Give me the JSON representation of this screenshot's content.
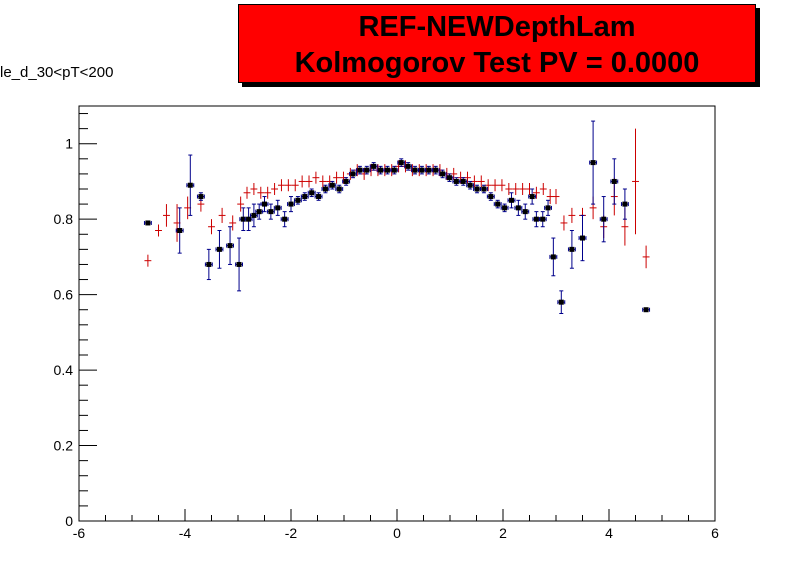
{
  "title": {
    "line1": "REF-NEWDepthLam",
    "line2": "Kolmogorov Test PV = 0.0000"
  },
  "side_label": "le_d_30<pT<200",
  "colors": {
    "title_bg": "#ff0000",
    "ref": "#cc0000",
    "new_marker": "#000000",
    "new_err": "#00008b"
  },
  "chart_data": {
    "type": "scatter",
    "title": "REF-NEWDepthLam",
    "xlim": [
      -6,
      6
    ],
    "ylim": [
      0,
      1.1
    ],
    "xticks": [
      "-6",
      "-4",
      "-2",
      "0",
      "2",
      "4",
      "6"
    ],
    "yticks": [
      "0",
      "0.2",
      "0.4",
      "0.6",
      "0.8",
      "1"
    ],
    "xtick_values": [
      -6,
      -4,
      -2,
      0,
      2,
      4,
      6
    ],
    "ytick_values": [
      0,
      0.2,
      0.4,
      0.6,
      0.8,
      1.0
    ],
    "bin_half_width": 0.065,
    "series": [
      {
        "style": "cross-red",
        "points": [
          [
            -4.7,
            0.69,
            0.0
          ],
          [
            -4.5,
            0.77,
            0.01
          ],
          [
            -4.35,
            0.81,
            0.03
          ],
          [
            -4.15,
            0.79,
            0.05
          ],
          [
            -3.95,
            0.83,
            0.03
          ],
          [
            -3.7,
            0.84,
            0.02
          ],
          [
            -3.5,
            0.78,
            0.02
          ],
          [
            -3.3,
            0.81,
            0.02
          ],
          [
            -3.1,
            0.79,
            0.02
          ],
          [
            -2.95,
            0.84,
            0.02
          ],
          [
            -2.83,
            0.87,
            0.01
          ],
          [
            -2.7,
            0.88,
            0.01
          ],
          [
            -2.57,
            0.87,
            0.01
          ],
          [
            -2.44,
            0.87,
            0.01
          ],
          [
            -2.31,
            0.88,
            0.01
          ],
          [
            -2.18,
            0.89,
            0.01
          ],
          [
            -2.05,
            0.89,
            0.01
          ],
          [
            -1.92,
            0.89,
            0.01
          ],
          [
            -1.79,
            0.9,
            0.01
          ],
          [
            -1.66,
            0.9,
            0.01
          ],
          [
            -1.53,
            0.91,
            0.01
          ],
          [
            -1.4,
            0.9,
            0.01
          ],
          [
            -1.27,
            0.9,
            0.01
          ],
          [
            -1.14,
            0.91,
            0.01
          ],
          [
            -1.01,
            0.91,
            0.01
          ],
          [
            -0.88,
            0.92,
            0.01
          ],
          [
            -0.75,
            0.93,
            0.01
          ],
          [
            -0.62,
            0.92,
            0.01
          ],
          [
            -0.49,
            0.93,
            0.01
          ],
          [
            -0.36,
            0.93,
            0.01
          ],
          [
            -0.23,
            0.93,
            0.01
          ],
          [
            -0.1,
            0.93,
            0.01
          ],
          [
            0.03,
            0.94,
            0.01
          ],
          [
            0.16,
            0.94,
            0.01
          ],
          [
            0.29,
            0.93,
            0.01
          ],
          [
            0.42,
            0.93,
            0.01
          ],
          [
            0.55,
            0.93,
            0.01
          ],
          [
            0.68,
            0.93,
            0.01
          ],
          [
            0.81,
            0.93,
            0.01
          ],
          [
            0.94,
            0.92,
            0.01
          ],
          [
            1.07,
            0.92,
            0.01
          ],
          [
            1.2,
            0.91,
            0.01
          ],
          [
            1.33,
            0.91,
            0.01
          ],
          [
            1.46,
            0.9,
            0.01
          ],
          [
            1.59,
            0.9,
            0.01
          ],
          [
            1.72,
            0.89,
            0.01
          ],
          [
            1.85,
            0.89,
            0.01
          ],
          [
            1.98,
            0.89,
            0.01
          ],
          [
            2.11,
            0.88,
            0.01
          ],
          [
            2.24,
            0.88,
            0.01
          ],
          [
            2.37,
            0.88,
            0.01
          ],
          [
            2.5,
            0.88,
            0.01
          ],
          [
            2.63,
            0.87,
            0.01
          ],
          [
            2.76,
            0.88,
            0.01
          ],
          [
            2.89,
            0.86,
            0.02
          ],
          [
            3.0,
            0.86,
            0.02
          ],
          [
            3.15,
            0.79,
            0.02
          ],
          [
            3.3,
            0.81,
            0.02
          ],
          [
            3.5,
            0.81,
            0.02
          ],
          [
            3.7,
            0.83,
            0.03
          ],
          [
            3.9,
            0.78,
            0.03
          ],
          [
            4.1,
            0.86,
            0.05
          ],
          [
            4.3,
            0.78,
            0.05
          ],
          [
            4.5,
            0.9,
            0.14
          ],
          [
            4.7,
            0.7,
            0.03
          ]
        ]
      },
      {
        "style": "square-black",
        "points": [
          [
            -4.7,
            0.79,
            0.0
          ],
          [
            -4.1,
            0.77,
            0.06
          ],
          [
            -3.9,
            0.89,
            0.08
          ],
          [
            -3.7,
            0.86,
            0.01
          ],
          [
            -3.55,
            0.68,
            0.04
          ],
          [
            -3.35,
            0.72,
            0.05
          ],
          [
            -3.15,
            0.73,
            0.05
          ],
          [
            -2.98,
            0.68,
            0.07
          ],
          [
            -2.9,
            0.8,
            0.03
          ],
          [
            -2.8,
            0.8,
            0.03
          ],
          [
            -2.7,
            0.81,
            0.03
          ],
          [
            -2.6,
            0.82,
            0.02
          ],
          [
            -2.5,
            0.84,
            0.02
          ],
          [
            -2.38,
            0.82,
            0.02
          ],
          [
            -2.25,
            0.83,
            0.02
          ],
          [
            -2.12,
            0.8,
            0.02
          ],
          [
            -2.0,
            0.84,
            0.02
          ],
          [
            -1.87,
            0.85,
            0.01
          ],
          [
            -1.74,
            0.86,
            0.01
          ],
          [
            -1.61,
            0.87,
            0.01
          ],
          [
            -1.48,
            0.86,
            0.01
          ],
          [
            -1.35,
            0.88,
            0.01
          ],
          [
            -1.22,
            0.89,
            0.01
          ],
          [
            -1.09,
            0.88,
            0.01
          ],
          [
            -0.96,
            0.9,
            0.01
          ],
          [
            -0.83,
            0.92,
            0.01
          ],
          [
            -0.7,
            0.93,
            0.01
          ],
          [
            -0.57,
            0.93,
            0.01
          ],
          [
            -0.44,
            0.94,
            0.01
          ],
          [
            -0.31,
            0.93,
            0.01
          ],
          [
            -0.18,
            0.93,
            0.01
          ],
          [
            -0.05,
            0.93,
            0.01
          ],
          [
            0.08,
            0.95,
            0.01
          ],
          [
            0.21,
            0.94,
            0.01
          ],
          [
            0.34,
            0.93,
            0.01
          ],
          [
            0.47,
            0.93,
            0.01
          ],
          [
            0.6,
            0.93,
            0.01
          ],
          [
            0.73,
            0.93,
            0.01
          ],
          [
            0.86,
            0.92,
            0.01
          ],
          [
            0.99,
            0.91,
            0.01
          ],
          [
            1.12,
            0.9,
            0.01
          ],
          [
            1.25,
            0.9,
            0.01
          ],
          [
            1.38,
            0.89,
            0.01
          ],
          [
            1.51,
            0.88,
            0.01
          ],
          [
            1.64,
            0.88,
            0.01
          ],
          [
            1.77,
            0.86,
            0.01
          ],
          [
            1.9,
            0.84,
            0.01
          ],
          [
            2.03,
            0.83,
            0.01
          ],
          [
            2.16,
            0.85,
            0.02
          ],
          [
            2.29,
            0.83,
            0.02
          ],
          [
            2.42,
            0.82,
            0.02
          ],
          [
            2.55,
            0.86,
            0.02
          ],
          [
            2.63,
            0.8,
            0.02
          ],
          [
            2.75,
            0.8,
            0.02
          ],
          [
            2.85,
            0.83,
            0.02
          ],
          [
            2.95,
            0.7,
            0.05
          ],
          [
            3.1,
            0.58,
            0.03
          ],
          [
            3.3,
            0.72,
            0.05
          ],
          [
            3.5,
            0.75,
            0.06
          ],
          [
            3.7,
            0.95,
            0.11
          ],
          [
            3.9,
            0.8,
            0.06
          ],
          [
            4.1,
            0.9,
            0.06
          ],
          [
            4.3,
            0.84,
            0.04
          ],
          [
            4.7,
            0.56,
            0.0
          ]
        ]
      }
    ]
  }
}
